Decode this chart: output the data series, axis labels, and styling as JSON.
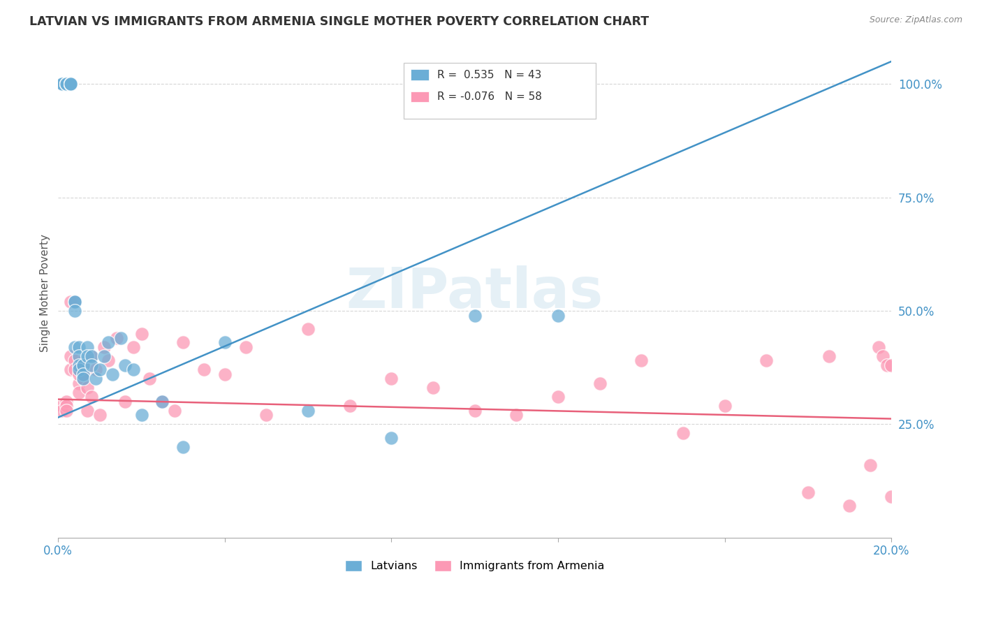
{
  "title": "LATVIAN VS IMMIGRANTS FROM ARMENIA SINGLE MOTHER POVERTY CORRELATION CHART",
  "source": "Source: ZipAtlas.com",
  "ylabel": "Single Mother Poverty",
  "x_min": 0.0,
  "x_max": 0.2,
  "y_min": 0.0,
  "y_max": 1.08,
  "x_ticks": [
    0.0,
    0.04,
    0.08,
    0.12,
    0.16,
    0.2
  ],
  "x_tick_labels": [
    "0.0%",
    "",
    "",
    "",
    "",
    "20.0%"
  ],
  "y_tick_labels_right": [
    "25.0%",
    "50.0%",
    "75.0%",
    "100.0%"
  ],
  "y_tick_vals_right": [
    0.25,
    0.5,
    0.75,
    1.0
  ],
  "legend_r_latvian": "0.535",
  "legend_n_latvian": "43",
  "legend_r_armenia": "-0.076",
  "legend_n_armenia": "58",
  "blue_color": "#6baed6",
  "pink_color": "#fc99b5",
  "blue_line_color": "#4292c6",
  "pink_line_color": "#e8607a",
  "grid_color": "#cccccc",
  "watermark": "ZIPatlas",
  "latvians_x": [
    0.001,
    0.001,
    0.001,
    0.002,
    0.002,
    0.002,
    0.002,
    0.003,
    0.003,
    0.003,
    0.003,
    0.003,
    0.004,
    0.004,
    0.004,
    0.004,
    0.005,
    0.005,
    0.005,
    0.005,
    0.006,
    0.006,
    0.006,
    0.007,
    0.007,
    0.008,
    0.008,
    0.009,
    0.01,
    0.011,
    0.012,
    0.013,
    0.015,
    0.016,
    0.018,
    0.02,
    0.025,
    0.03,
    0.04,
    0.06,
    0.08,
    0.1,
    0.12
  ],
  "latvians_y": [
    1.0,
    1.0,
    1.0,
    1.0,
    1.0,
    1.0,
    1.0,
    1.0,
    1.0,
    1.0,
    1.0,
    1.0,
    0.52,
    0.52,
    0.5,
    0.42,
    0.42,
    0.4,
    0.38,
    0.37,
    0.38,
    0.36,
    0.35,
    0.42,
    0.4,
    0.4,
    0.38,
    0.35,
    0.37,
    0.4,
    0.43,
    0.36,
    0.44,
    0.38,
    0.37,
    0.27,
    0.3,
    0.2,
    0.43,
    0.28,
    0.22,
    0.49,
    0.49
  ],
  "armenia_x": [
    0.001,
    0.001,
    0.002,
    0.002,
    0.002,
    0.003,
    0.003,
    0.003,
    0.004,
    0.004,
    0.004,
    0.005,
    0.005,
    0.005,
    0.006,
    0.006,
    0.006,
    0.007,
    0.007,
    0.008,
    0.008,
    0.009,
    0.01,
    0.011,
    0.012,
    0.014,
    0.016,
    0.018,
    0.02,
    0.022,
    0.025,
    0.028,
    0.03,
    0.035,
    0.04,
    0.045,
    0.05,
    0.06,
    0.07,
    0.08,
    0.09,
    0.1,
    0.11,
    0.12,
    0.13,
    0.14,
    0.15,
    0.16,
    0.17,
    0.18,
    0.185,
    0.19,
    0.195,
    0.197,
    0.198,
    0.199,
    0.2,
    0.2
  ],
  "armenia_y": [
    0.29,
    0.28,
    0.3,
    0.29,
    0.28,
    0.52,
    0.37,
    0.4,
    0.52,
    0.39,
    0.37,
    0.34,
    0.32,
    0.36,
    0.35,
    0.38,
    0.36,
    0.33,
    0.28,
    0.31,
    0.4,
    0.37,
    0.27,
    0.42,
    0.39,
    0.44,
    0.3,
    0.42,
    0.45,
    0.35,
    0.3,
    0.28,
    0.43,
    0.37,
    0.36,
    0.42,
    0.27,
    0.46,
    0.29,
    0.35,
    0.33,
    0.28,
    0.27,
    0.31,
    0.34,
    0.39,
    0.23,
    0.29,
    0.39,
    0.1,
    0.4,
    0.07,
    0.16,
    0.42,
    0.4,
    0.38,
    0.09,
    0.38
  ],
  "blue_line_x0": 0.0,
  "blue_line_x1": 0.2,
  "blue_line_y0": 0.265,
  "blue_line_y1": 1.05,
  "pink_line_x0": 0.0,
  "pink_line_x1": 0.2,
  "pink_line_y0": 0.305,
  "pink_line_y1": 0.262
}
